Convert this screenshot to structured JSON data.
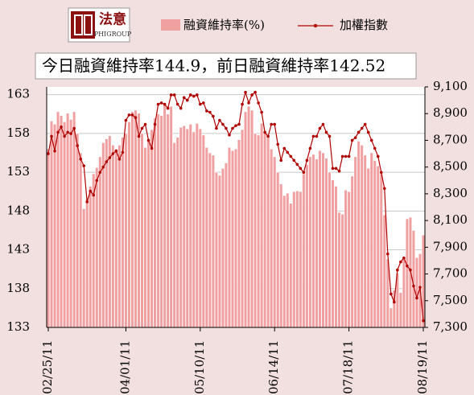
{
  "logo": {
    "text": "法意",
    "subtext": "PHIGROUP"
  },
  "chart_data": {
    "type": "bar",
    "annotation": "今日融資維持率144.9，前日融資維持率142.52",
    "categories": [
      "02/25/11",
      null,
      null,
      null,
      null,
      null,
      null,
      null,
      null,
      null,
      null,
      null,
      null,
      null,
      null,
      null,
      null,
      null,
      null,
      null,
      null,
      null,
      null,
      null,
      "04/01/11",
      null,
      null,
      null,
      null,
      null,
      null,
      null,
      null,
      null,
      null,
      null,
      null,
      null,
      null,
      null,
      null,
      null,
      null,
      null,
      null,
      null,
      null,
      "05/10/11",
      null,
      null,
      null,
      null,
      null,
      null,
      null,
      null,
      null,
      null,
      null,
      null,
      null,
      null,
      null,
      null,
      null,
      null,
      null,
      null,
      null,
      null,
      "06/14/11",
      null,
      null,
      null,
      null,
      null,
      null,
      null,
      null,
      null,
      null,
      null,
      null,
      null,
      null,
      null,
      null,
      null,
      null,
      null,
      null,
      null,
      null,
      "07/18/11",
      null,
      null,
      null,
      null,
      null,
      null,
      null,
      null,
      null,
      null,
      null,
      null,
      null,
      null,
      null,
      null,
      null,
      null,
      null,
      null,
      null,
      null,
      "08/19/11"
    ],
    "series": [
      {
        "name": "融資維持率(%)",
        "type": "bar",
        "color": "#f0a0a0",
        "values": [
          156.0,
          159.6,
          159.2,
          160.8,
          160.3,
          159.5,
          160.6,
          159.8,
          160.8,
          158.0,
          155.5,
          148.3,
          149.5,
          151.2,
          152.8,
          153.6,
          155.0,
          156.8,
          157.3,
          157.7,
          156.5,
          156.0,
          156.5,
          157.5,
          158.0,
          159.5,
          160.8,
          161.0,
          160.6,
          158.0,
          156.2,
          157.0,
          158.5,
          160.0,
          160.5,
          160.3,
          161.8,
          160.5,
          161.5,
          156.8,
          157.5,
          158.8,
          159.0,
          158.6,
          159.2,
          158.2,
          159.3,
          158.6,
          157.8,
          156.2,
          155.5,
          155.2,
          153.0,
          152.6,
          153.5,
          154.2,
          156.2,
          155.8,
          156.0,
          157.2,
          158.5,
          160.8,
          161.5,
          161.0,
          158.0,
          157.8,
          159.3,
          158.2,
          157.5,
          156.0,
          155.0,
          153.0,
          151.5,
          150.0,
          150.3,
          149.0,
          150.5,
          150.6,
          150.5,
          152.8,
          154.0,
          155.0,
          155.3,
          154.7,
          155.8,
          155.5,
          154.8,
          153.0,
          152.0,
          151.2,
          147.8,
          147.6,
          150.7,
          150.5,
          152.5,
          155.0,
          157.0,
          156.5,
          155.2,
          153.5,
          155.5,
          154.5,
          153.8,
          152.8,
          147.5,
          141.8,
          135.5,
          137.8,
          140.0,
          137.5,
          141.8,
          147.0,
          147.2,
          145.5,
          142.0,
          142.5,
          144.9
        ]
      },
      {
        "name": "加權指數",
        "type": "line",
        "axis": "y2",
        "color": "#b00000",
        "values": [
          8600,
          8730,
          8620,
          8760,
          8800,
          8730,
          8760,
          8750,
          8790,
          8660,
          8560,
          8510,
          8240,
          8320,
          8290,
          8400,
          8460,
          8500,
          8540,
          8570,
          8600,
          8620,
          8560,
          8610,
          8850,
          8890,
          8890,
          8870,
          8730,
          8790,
          8820,
          8700,
          8640,
          8820,
          8970,
          8980,
          8970,
          8940,
          9040,
          9040,
          8970,
          8940,
          9020,
          9000,
          9040,
          9030,
          9040,
          8970,
          8980,
          8920,
          8910,
          8880,
          8790,
          8850,
          8820,
          8790,
          8740,
          8790,
          8810,
          8820,
          8970,
          9060,
          8980,
          9040,
          9060,
          8980,
          8910,
          8760,
          8730,
          8820,
          8820,
          8670,
          8550,
          8640,
          8610,
          8580,
          8550,
          8520,
          8490,
          8460,
          8550,
          8640,
          8730,
          8730,
          8790,
          8820,
          8760,
          8730,
          8490,
          8490,
          8470,
          8580,
          8580,
          8580,
          8700,
          8720,
          8760,
          8790,
          8820,
          8760,
          8700,
          8640,
          8580,
          8460,
          8340,
          7850,
          7550,
          7490,
          7730,
          7790,
          7820,
          7760,
          7730,
          7610,
          7520,
          7600,
          7350
        ]
      }
    ],
    "ylim": [
      133,
      164
    ],
    "yticks": [
      133,
      138,
      143,
      148,
      153,
      158,
      163
    ],
    "y2lim": [
      7300,
      9100
    ],
    "y2ticks": [
      {
        "value": 7300,
        "label": "7,300"
      },
      {
        "value": 7500,
        "label": "7,500"
      },
      {
        "value": 7700,
        "label": "7,700"
      },
      {
        "value": 7900,
        "label": "7,900"
      },
      {
        "value": 8100,
        "label": "8,100"
      },
      {
        "value": 8300,
        "label": "8,300"
      },
      {
        "value": 8500,
        "label": "8,500"
      },
      {
        "value": 8700,
        "label": "8,700"
      },
      {
        "value": 8900,
        "label": "8,900"
      },
      {
        "value": 9100,
        "label": "9,100"
      }
    ],
    "grid": true
  }
}
